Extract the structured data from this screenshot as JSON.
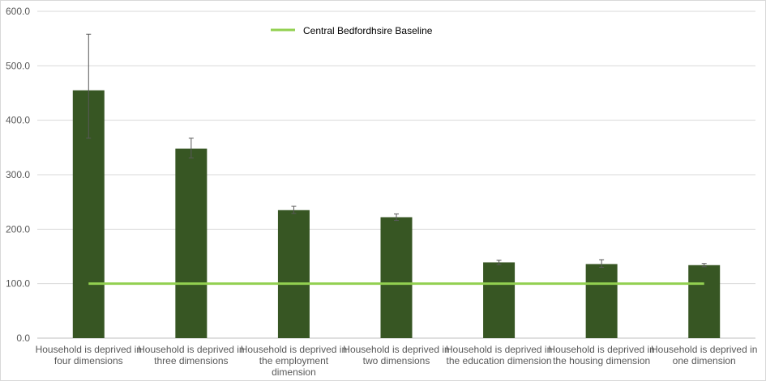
{
  "chart_data": {
    "type": "bar",
    "title": "",
    "xlabel": "",
    "ylabel": "",
    "ylim": [
      0,
      600
    ],
    "y_ticks": [
      "0.0",
      "100.0",
      "200.0",
      "300.0",
      "400.0",
      "500.0",
      "600.0"
    ],
    "categories": [
      [
        "Household is deprived in",
        "four dimensions"
      ],
      [
        "Household is deprived in",
        "three dimensions"
      ],
      [
        "Household is deprived in",
        "the employment",
        "dimension"
      ],
      [
        "Household is deprived in",
        "two dimensions"
      ],
      [
        "Household is deprived in",
        "the education dimension"
      ],
      [
        "Household is deprived in",
        "the housing dimension"
      ],
      [
        "Household is deprived in",
        "one dimension"
      ]
    ],
    "series": [
      {
        "values": [
          455,
          348,
          235,
          222,
          139,
          136,
          134
        ],
        "error_low": [
          367,
          331,
          229,
          216,
          135,
          130,
          131
        ],
        "error_high": [
          558,
          367,
          242,
          228,
          143,
          144,
          137
        ],
        "color": "#375623"
      },
      {
        "name": "Central Bedfordhsire Baseline",
        "type": "line",
        "value": 100,
        "color": "#92d050"
      }
    ],
    "legend_position": "top",
    "grid": true,
    "colors": {
      "gridline": "#d9d9d9",
      "axis": "#bfbfbf",
      "errorbar": "#595959"
    }
  }
}
